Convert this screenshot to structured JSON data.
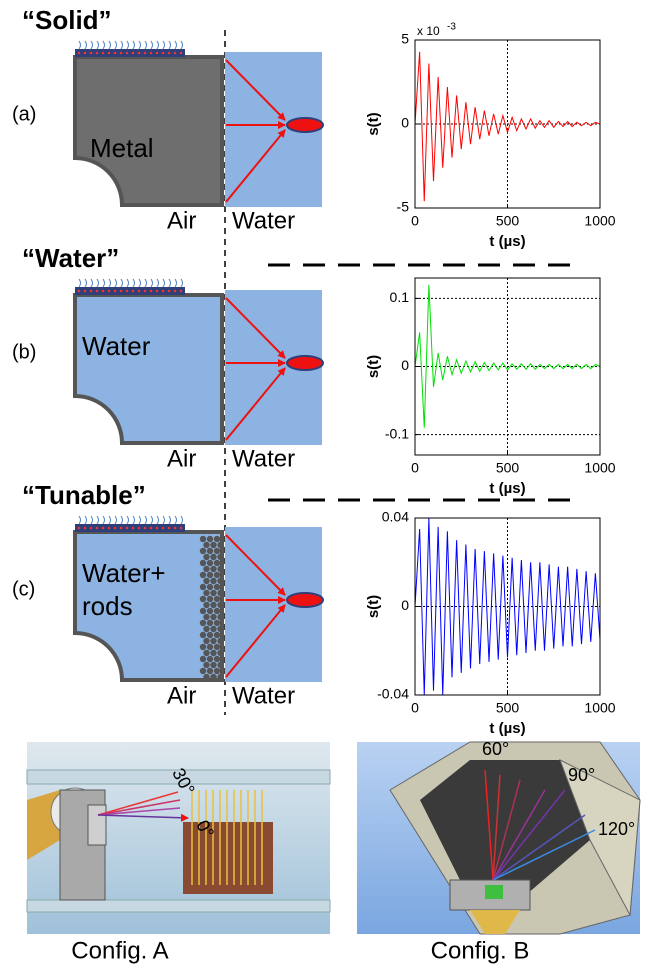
{
  "panels": [
    {
      "label": "(a)",
      "title": "“Solid”",
      "material": "Metal",
      "left_medium": "Air",
      "right_medium": "Water"
    },
    {
      "label": "(b)",
      "title": "“Water”",
      "material": "Water",
      "left_medium": "Air",
      "right_medium": "Water"
    },
    {
      "label": "(c)",
      "title": "“Tunable”",
      "material": [
        "Water+",
        "rods"
      ],
      "left_medium": "Air",
      "right_medium": "Water"
    }
  ],
  "chart_data": [
    {
      "type": "line",
      "xlabel": "t (µs)",
      "ylabel": "s(t)",
      "y_multiplier": {
        "base": "x 10",
        "exponent": "-3"
      },
      "x": [
        0,
        25,
        50,
        75,
        100,
        125,
        150,
        175,
        200,
        225,
        250,
        275,
        300,
        325,
        350,
        375,
        400,
        425,
        450,
        475,
        500,
        525,
        550,
        575,
        600,
        625,
        650,
        675,
        700,
        725,
        750,
        775,
        800,
        825,
        850,
        875,
        900,
        925,
        950,
        975,
        1000
      ],
      "series": [
        {
          "color": "#ff0000",
          "values": [
            0,
            4.3,
            -4.6,
            3.6,
            -3.4,
            2.8,
            -2.6,
            2.2,
            -2.0,
            1.7,
            -1.5,
            1.3,
            -1.2,
            1.0,
            -0.9,
            0.8,
            -0.7,
            0.6,
            -0.6,
            0.5,
            -0.5,
            0.4,
            -0.4,
            0.3,
            -0.3,
            0.3,
            -0.25,
            0.2,
            -0.2,
            0.2,
            -0.2,
            0.15,
            -0.15,
            0.15,
            -0.15,
            0.1,
            -0.1,
            0.1,
            -0.1,
            0.1,
            0
          ]
        }
      ],
      "xlim": [
        0,
        1000
      ],
      "xticks": [
        0,
        500,
        1000
      ],
      "ylim": [
        -5,
        5
      ],
      "yticks": [
        -5,
        0,
        5
      ],
      "grid": true
    },
    {
      "type": "line",
      "xlabel": "t (µs)",
      "ylabel": "s(t)",
      "x": [
        0,
        25,
        50,
        75,
        100,
        125,
        150,
        175,
        200,
        225,
        250,
        275,
        300,
        325,
        350,
        375,
        400,
        425,
        450,
        475,
        500,
        525,
        550,
        575,
        600,
        625,
        650,
        675,
        700,
        725,
        750,
        775,
        800,
        825,
        850,
        875,
        900,
        925,
        950,
        975,
        1000
      ],
      "series": [
        {
          "color": "#00e000",
          "values": [
            0,
            0.05,
            -0.09,
            0.12,
            -0.03,
            0.02,
            -0.02,
            0.015,
            -0.012,
            0.01,
            -0.01,
            0.008,
            -0.008,
            0.007,
            -0.007,
            0.006,
            -0.006,
            0.005,
            -0.005,
            0.005,
            -0.005,
            0.004,
            -0.004,
            0.004,
            -0.004,
            0.004,
            -0.004,
            0.003,
            -0.003,
            0.003,
            -0.003,
            0.003,
            -0.003,
            0.003,
            -0.003,
            0.003,
            -0.003,
            0.003,
            -0.003,
            0.003,
            0
          ]
        }
      ],
      "xlim": [
        0,
        1000
      ],
      "xticks": [
        0,
        500,
        1000
      ],
      "ylim": [
        -0.13,
        0.13
      ],
      "yticks": [
        -0.1,
        0,
        0.1
      ],
      "grid": true
    },
    {
      "type": "line",
      "xlabel": "t (µs)",
      "ylabel": "s(t)",
      "x": [
        0,
        25,
        50,
        75,
        100,
        125,
        150,
        175,
        200,
        225,
        250,
        275,
        300,
        325,
        350,
        375,
        400,
        425,
        450,
        475,
        500,
        525,
        550,
        575,
        600,
        625,
        650,
        675,
        700,
        725,
        750,
        775,
        800,
        825,
        850,
        875,
        900,
        925,
        950,
        975,
        1000
      ],
      "series": [
        {
          "color": "#0000ff",
          "values": [
            0,
            0.035,
            -0.04,
            0.04,
            -0.038,
            0.036,
            -0.04,
            0.034,
            -0.032,
            0.03,
            -0.03,
            0.028,
            -0.028,
            0.026,
            -0.026,
            0.025,
            -0.025,
            0.024,
            -0.024,
            0.023,
            -0.023,
            0.022,
            -0.022,
            0.021,
            -0.021,
            0.02,
            -0.02,
            0.02,
            -0.02,
            0.019,
            -0.019,
            0.018,
            -0.018,
            0.018,
            -0.018,
            0.017,
            -0.017,
            0.016,
            -0.016,
            0.015,
            -0.015
          ]
        }
      ],
      "xlim": [
        0,
        1000
      ],
      "xticks": [
        0,
        500,
        1000
      ],
      "ylim": [
        -0.04,
        0.04
      ],
      "yticks": [
        -0.04,
        0,
        0.04
      ],
      "grid": true
    }
  ],
  "configs": [
    {
      "caption": "Config. A",
      "angles": [
        "30°",
        "0°"
      ]
    },
    {
      "caption": "Config. B",
      "angles": [
        "60°",
        "90°",
        "120°"
      ]
    }
  ]
}
